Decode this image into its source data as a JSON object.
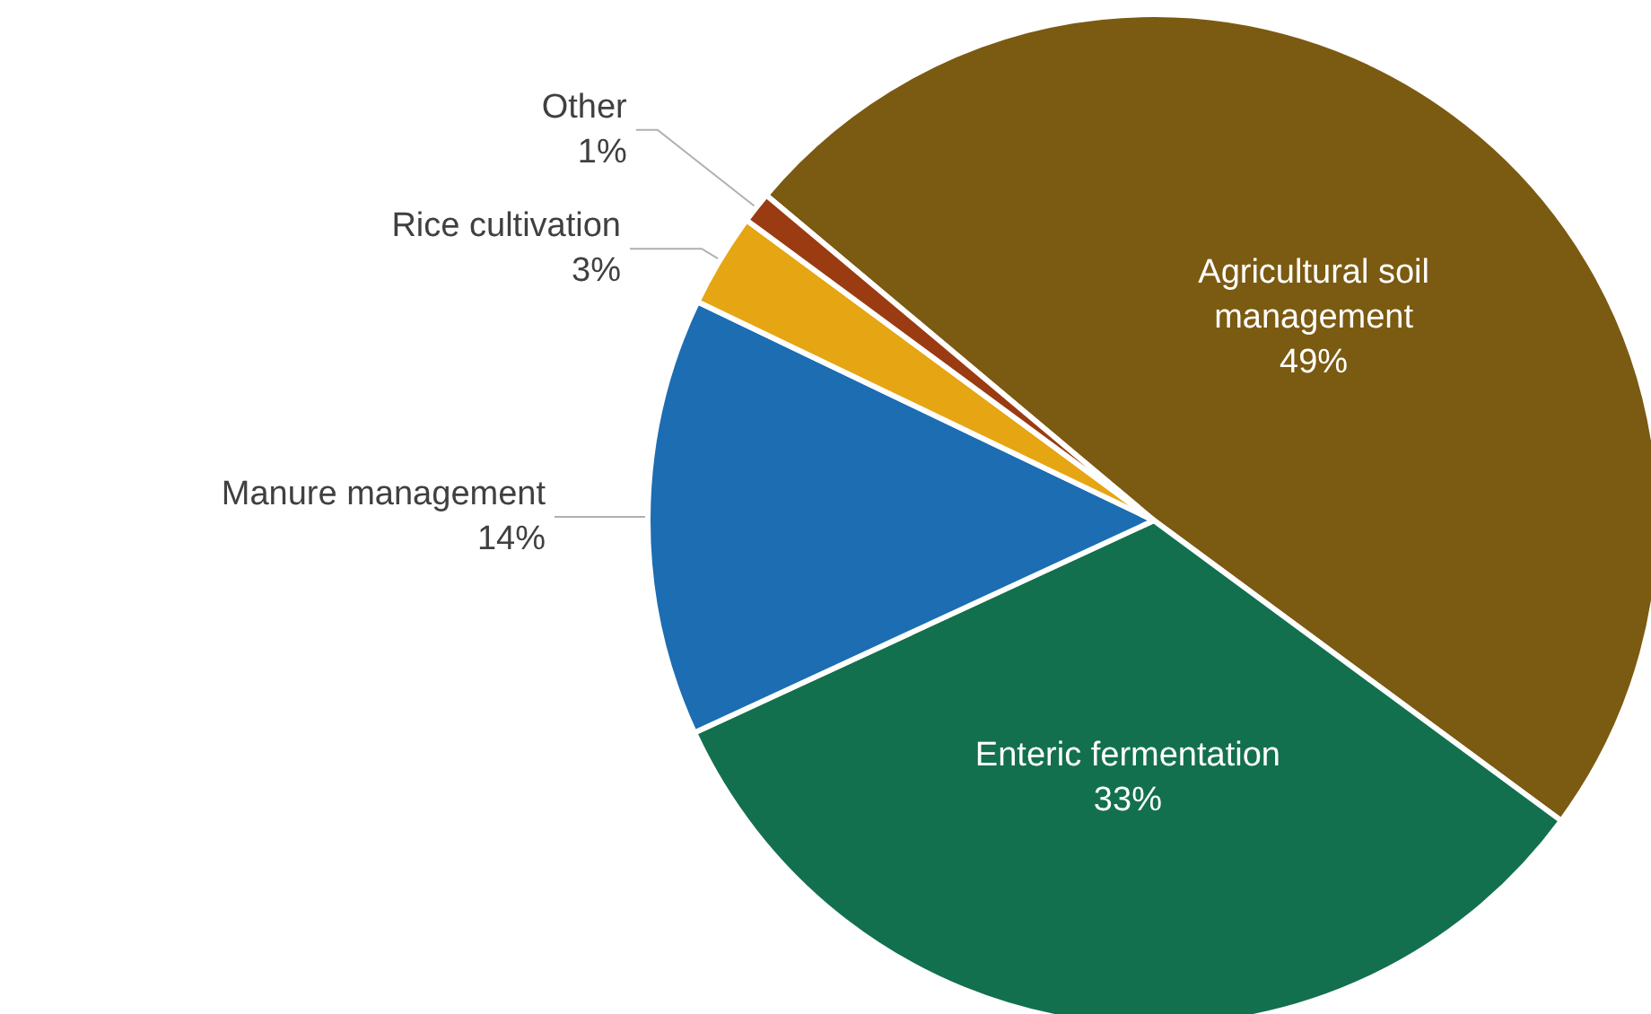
{
  "chart_data": {
    "type": "pie",
    "categories": [
      "Agricultural soil management",
      "Enteric fermentation",
      "Manure management",
      "Rice cultivation",
      "Other"
    ],
    "values": [
      49,
      33,
      14,
      3,
      1
    ],
    "value_labels": [
      "49%",
      "33%",
      "14%",
      "3%",
      "1%"
    ],
    "colors": [
      "#7b5a12",
      "#13704e",
      "#1c6db2",
      "#e6a512",
      "#9b3b12"
    ],
    "legend": false
  }
}
